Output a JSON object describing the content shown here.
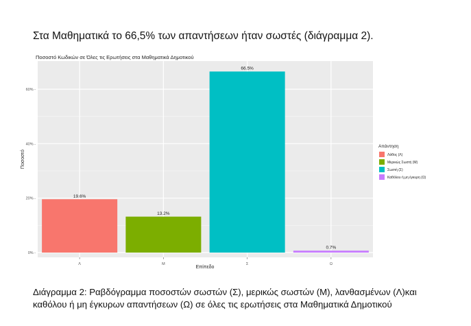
{
  "page": {
    "heading": "Στα Μαθηματικά το 66,5% των απαντήσεων ήταν σωστές (διάγραμμα 2).",
    "caption": "Διάγραμμα 2: Ραβδόγραμμα ποσοστών σωστών (Σ), μερικώς σωστών (Μ), λανθασμένων (Λ)και καθόλου ή μη έγκυρων απαντήσεων (Ω) σε όλες τις ερωτήσεις στα Μαθηματικά Δημοτικού"
  },
  "chart_data": {
    "type": "bar",
    "title": "Ποσοστό Κωδικών σε Όλες τις Ερωτήσεις στα Μαθηματικά Δημοτικού",
    "xlabel": "Επίπεδο",
    "ylabel": "Ποσοστό",
    "categories": [
      "Λ",
      "Μ",
      "Σ",
      "Ω"
    ],
    "values": [
      19.6,
      13.2,
      66.5,
      0.7
    ],
    "value_labels": [
      "19.6%",
      "13.2%",
      "66.5%",
      "0.7%"
    ],
    "colors": [
      "#F8766D",
      "#7CAE00",
      "#00BFC4",
      "#C77CFF"
    ],
    "yticks": [
      0,
      20,
      40,
      60
    ],
    "ytick_labels": [
      "0% -",
      "20% -",
      "40% -",
      "60% -"
    ],
    "ylim": [
      0,
      70
    ],
    "grid": true,
    "legend": {
      "title": "Απάντηση",
      "placement": "right",
      "entries": [
        "Λάθος (Λ)",
        "Μερικώς Σωστή (Μ)",
        "Σωστή (Σ)",
        "Καθόλου ή μη έγκυρη (Ω)"
      ]
    }
  }
}
